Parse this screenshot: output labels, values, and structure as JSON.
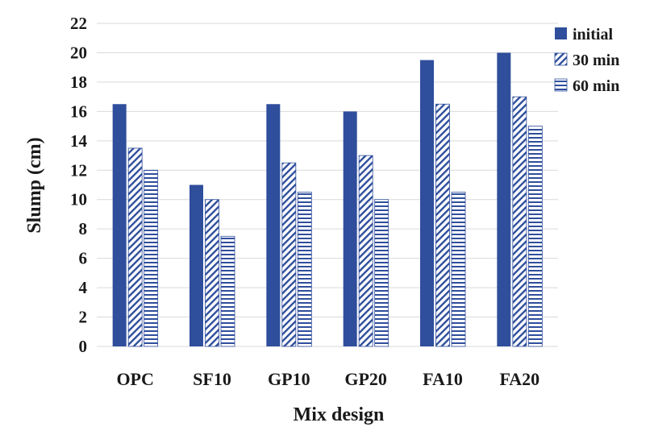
{
  "chart_data": {
    "type": "bar",
    "title": "",
    "xlabel": "Mix design",
    "ylabel": "Slump (cm)",
    "ylim": [
      0,
      22
    ],
    "yticks": [
      0,
      2,
      4,
      6,
      8,
      10,
      12,
      14,
      16,
      18,
      20,
      22
    ],
    "grid": "horizontal",
    "legend_position": "top-right",
    "categories": [
      "OPC",
      "SF10",
      "GP10",
      "GP20",
      "FA10",
      "FA20"
    ],
    "series": [
      {
        "name": "initial",
        "pattern": "solid",
        "color": "#2f4e9c",
        "values": [
          16.5,
          11,
          16.5,
          16,
          19.5,
          20
        ]
      },
      {
        "name": "30 min",
        "pattern": "diagonal-hatch",
        "color": "#2f4e9c",
        "values": [
          13.5,
          10,
          12.5,
          13,
          16.5,
          17
        ]
      },
      {
        "name": "60 min",
        "pattern": "horizontal-stripes",
        "color": "#2f4e9c",
        "values": [
          12,
          7.5,
          10.5,
          10,
          10.5,
          15
        ]
      }
    ]
  }
}
